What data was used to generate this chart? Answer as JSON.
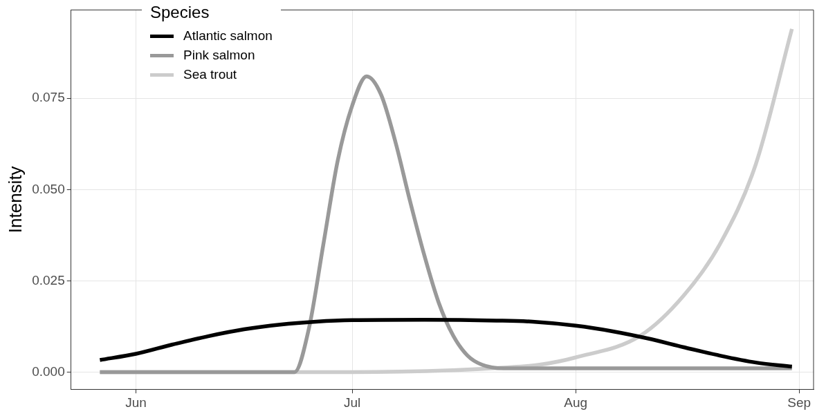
{
  "chart_data": {
    "type": "line",
    "ylabel": "Intensity",
    "legend_title": "Species",
    "legend": "top left",
    "grid": true,
    "marker": "none",
    "line_style": "solid",
    "xlim": [
      "--05-23",
      "--09-03"
    ],
    "xticks": [
      {
        "value": "--06-01",
        "label": "Jun"
      },
      {
        "value": "--07-01",
        "label": "Jul"
      },
      {
        "value": "--08-01",
        "label": "Aug"
      },
      {
        "value": "--09-01",
        "label": "Sep"
      }
    ],
    "ylim": [
      -0.0047,
      0.0992
    ],
    "yticks": [
      {
        "value": 0,
        "label": "0.000"
      },
      {
        "value": 0.025,
        "label": "0.025"
      },
      {
        "value": 0.05,
        "label": "0.050"
      },
      {
        "value": 0.075,
        "label": "0.075"
      }
    ],
    "series": [
      {
        "name": "Atlantic salmon",
        "color": "#000000",
        "x": [
          "--05-27",
          "--06-01",
          "--06-06",
          "--06-11",
          "--06-16",
          "--06-21",
          "--06-26",
          "--07-01",
          "--07-11",
          "--07-21",
          "--07-26",
          "--08-01",
          "--08-06",
          "--08-11",
          "--08-16",
          "--08-21",
          "--08-26",
          "--08-31"
        ],
        "values": [
          0.0033,
          0.005,
          0.0075,
          0.0098,
          0.0117,
          0.013,
          0.0138,
          0.0142,
          0.0143,
          0.0141,
          0.0138,
          0.0127,
          0.0112,
          0.0092,
          0.0068,
          0.0045,
          0.0026,
          0.0015
        ]
      },
      {
        "name": "Pink salmon",
        "color": "#999999",
        "x": [
          "--05-27",
          "--06-23",
          "--06-25",
          "--06-27",
          "--06-29",
          "--07-01",
          "--07-03",
          "--07-05",
          "--07-07",
          "--07-09",
          "--07-11",
          "--07-13",
          "--07-15",
          "--07-17",
          "--07-19",
          "--07-22",
          "--08-31"
        ],
        "values": [
          0,
          0,
          0.012,
          0.035,
          0.058,
          0.073,
          0.081,
          0.076,
          0.063,
          0.047,
          0.032,
          0.019,
          0.01,
          0.0045,
          0.002,
          0.001,
          0.001
        ]
      },
      {
        "name": "Sea trout",
        "color": "#cccccc",
        "x": [
          "--05-27",
          "--07-01",
          "--07-15",
          "--07-22",
          "--07-27",
          "--08-01",
          "--08-10",
          "--08-16",
          "--08-21",
          "--08-26",
          "--08-31"
        ],
        "values": [
          0,
          0,
          0.0005,
          0.0012,
          0.002,
          0.004,
          0.01,
          0.021,
          0.035,
          0.057,
          0.094
        ]
      }
    ]
  }
}
